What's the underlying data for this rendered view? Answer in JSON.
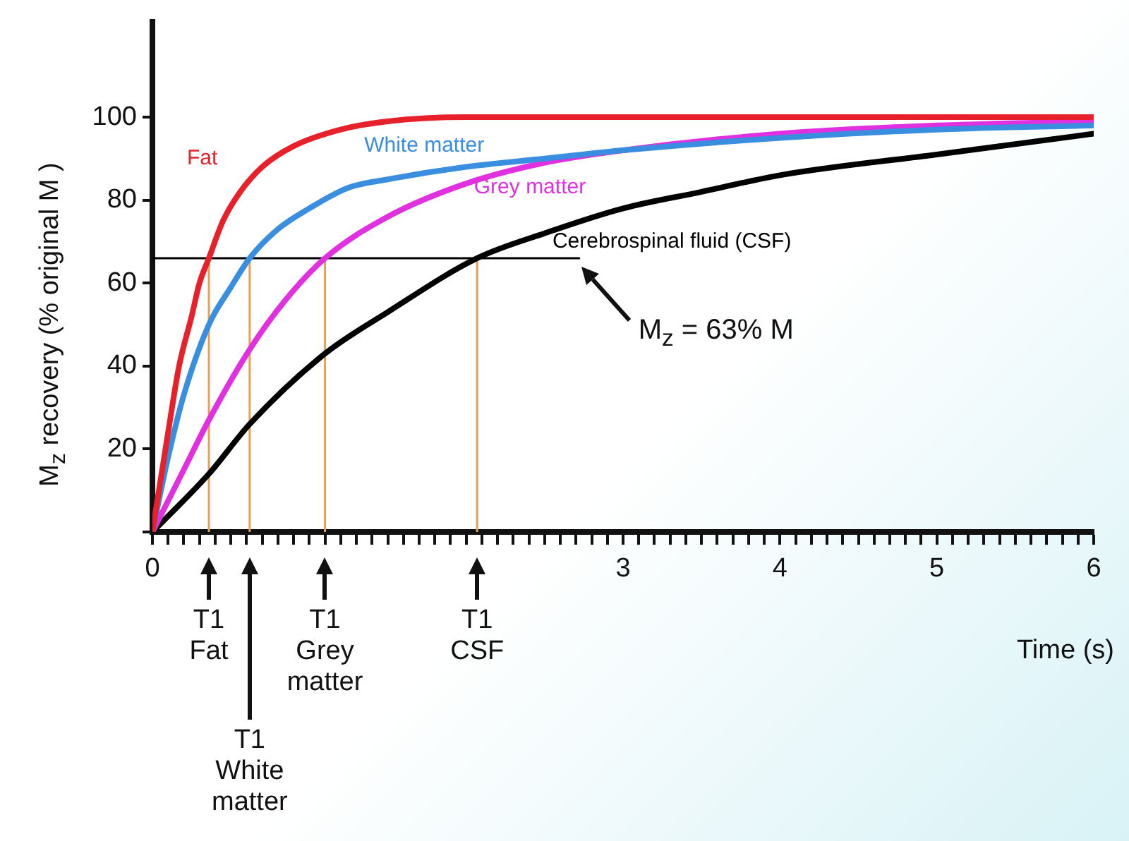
{
  "chart_data": {
    "type": "line",
    "xlabel": "Time (s)",
    "ylabel": "M$_{z}$ recovery (% original M )",
    "xlim": [
      0,
      6
    ],
    "ylim": [
      0,
      123
    ],
    "xticks": [
      0,
      {
        "value": 0.1,
        "label": null
      },
      {
        "value": 0.2,
        "label": null
      },
      {
        "value": 0.3,
        "label": null
      },
      {
        "value": 0.4,
        "label": null
      },
      {
        "value": 0.5,
        "label": null
      },
      {
        "value": 0.6,
        "label": null
      },
      {
        "value": 0.7,
        "label": null
      },
      {
        "value": 0.8,
        "label": null
      },
      {
        "value": 0.9,
        "label": null
      },
      {
        "value": 1,
        "label": null
      },
      {
        "value": 1.1,
        "label": null
      },
      {
        "value": 1.2,
        "label": null
      },
      {
        "value": 1.3,
        "label": null
      },
      {
        "value": 1.4,
        "label": null
      },
      {
        "value": 1.5,
        "label": null
      },
      {
        "value": 1.6,
        "label": null
      },
      {
        "value": 1.7,
        "label": null
      },
      {
        "value": 1.8,
        "label": null
      },
      {
        "value": 1.9,
        "label": null
      },
      {
        "value": 2,
        "label": null
      },
      {
        "value": 2.1,
        "label": null
      },
      {
        "value": 2.2,
        "label": null
      },
      {
        "value": 2.3,
        "label": null
      },
      {
        "value": 2.4,
        "label": null
      },
      {
        "value": 2.5,
        "label": null
      },
      {
        "value": 2.6,
        "label": null
      },
      {
        "value": 2.7,
        "label": null
      },
      {
        "value": 2.8,
        "label": null
      },
      {
        "value": 2.9,
        "label": null
      },
      3,
      {
        "value": 3.1,
        "label": null
      },
      {
        "value": 3.2,
        "label": null
      },
      {
        "value": 3.3,
        "label": null
      },
      {
        "value": 3.4,
        "label": null
      },
      {
        "value": 3.5,
        "label": null
      },
      {
        "value": 3.6,
        "label": null
      },
      {
        "value": 3.7,
        "label": null
      },
      {
        "value": 3.8,
        "label": null
      },
      {
        "value": 3.9,
        "label": null
      },
      4,
      {
        "value": 4.1,
        "label": null
      },
      {
        "value": 4.2,
        "label": null
      },
      {
        "value": 4.3,
        "label": null
      },
      {
        "value": 4.4,
        "label": null
      },
      {
        "value": 4.5,
        "label": null
      },
      {
        "value": 4.6,
        "label": null
      },
      {
        "value": 4.7,
        "label": null
      },
      {
        "value": 4.8,
        "label": null
      },
      {
        "value": 4.9,
        "label": null
      },
      5,
      {
        "value": 5.1,
        "label": null
      },
      {
        "value": 5.2,
        "label": null
      },
      {
        "value": 5.3,
        "label": null
      },
      {
        "value": 5.4,
        "label": null
      },
      {
        "value": 5.5,
        "label": null
      },
      {
        "value": 5.6,
        "label": null
      },
      {
        "value": 5.7,
        "label": null
      },
      {
        "value": 5.8,
        "label": null
      },
      {
        "value": 5.9,
        "label": null
      },
      6
    ],
    "yticks": [
      {
        "value": 0,
        "label": null
      },
      20,
      40,
      60,
      80,
      100
    ],
    "marker": "none",
    "line_style": "solid",
    "series": [
      {
        "name": "Fat",
        "color": "#e8202a",
        "x": [
          0,
          0.1,
          0.17,
          0.25,
          0.3,
          0.36,
          0.45,
          0.56,
          0.7,
          0.9,
          1.2,
          1.5,
          2,
          3,
          4,
          5,
          6
        ],
        "values": [
          0,
          24,
          40,
          52,
          60,
          66,
          75,
          82,
          88,
          93,
          97,
          99,
          100,
          100,
          100,
          100,
          100
        ]
      },
      {
        "name": "White matter",
        "color": "#3a8ee0",
        "x": [
          0,
          0.1,
          0.2,
          0.36,
          0.5,
          0.62,
          0.8,
          1.0,
          1.25,
          1.5,
          2,
          2.5,
          3,
          4,
          5,
          6
        ],
        "values": [
          0,
          18,
          33,
          50,
          59,
          66,
          73,
          78,
          83,
          85,
          88,
          90,
          92,
          95,
          97,
          98
        ]
      },
      {
        "name": "Grey matter",
        "color": "#e030e0",
        "x": [
          0,
          0.2,
          0.36,
          0.62,
          0.85,
          1.1,
          1.5,
          2,
          2.5,
          3,
          4,
          5,
          6
        ],
        "values": [
          0,
          15,
          27,
          44,
          56,
          66,
          76,
          84,
          89,
          92,
          96,
          98,
          99
        ]
      },
      {
        "name": "Cerebrospinal fluid (CSF)",
        "color": "#000000",
        "x": [
          0,
          0.36,
          0.62,
          1.1,
          1.5,
          2.07,
          2.5,
          3,
          3.5,
          4,
          5,
          6
        ],
        "values": [
          0,
          14,
          26,
          43,
          53,
          66,
          72,
          78,
          82,
          86,
          91,
          96
        ]
      },
      {
        "color": "#000000",
        "x": [
          0,
          2.72
        ],
        "values": [
          66,
          66
        ]
      },
      {
        "color": "#e8a050",
        "x": [
          0.36,
          0.36
        ],
        "values": [
          0,
          66
        ]
      },
      {
        "color": "#e8a050",
        "x": [
          0.62,
          0.62
        ],
        "values": [
          0,
          66
        ]
      },
      {
        "color": "#e8a050",
        "x": [
          1.1,
          1.1
        ],
        "values": [
          0,
          66
        ]
      },
      {
        "color": "#e8a050",
        "x": [
          2.07,
          2.07
        ],
        "values": [
          0,
          66
        ]
      }
    ],
    "annotations": [
      {
        "text": "M$_{z}$ = 63% M",
        "x": 2.72,
        "y": 66
      },
      "T1\nFat",
      "T1\nWhite\nmatter",
      "T1\nGrey\nmatter",
      "T1\nCSF"
    ]
  }
}
